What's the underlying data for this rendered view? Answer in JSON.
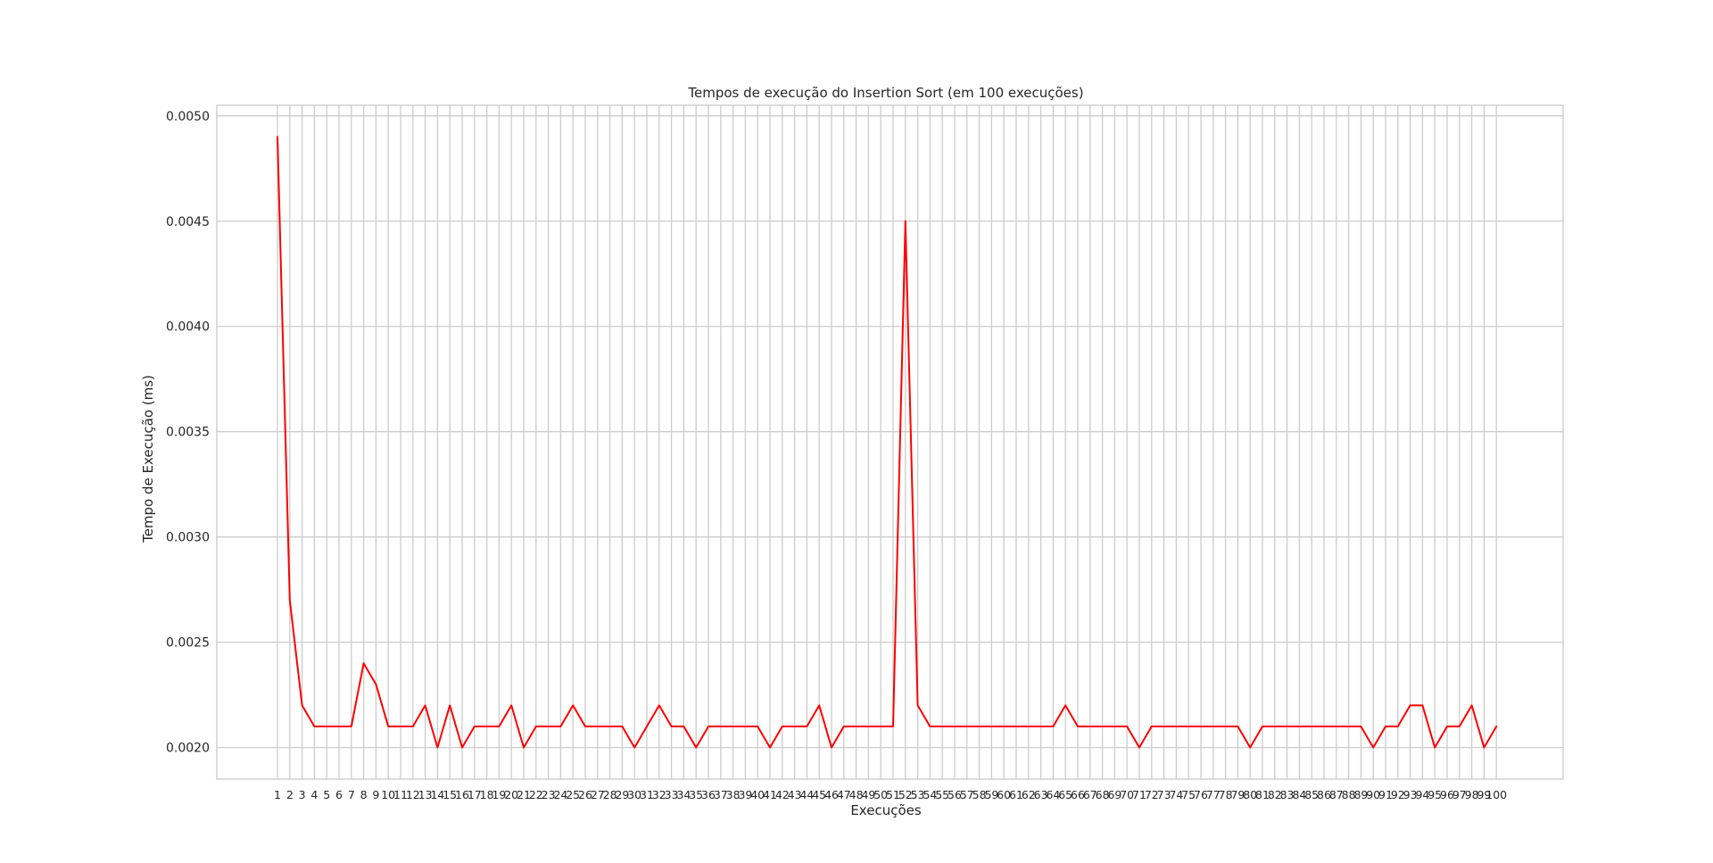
{
  "chart_data": {
    "type": "line",
    "title": "Tempos de execução do Insertion Sort (em 100 execuções)",
    "xlabel": "Execuções",
    "ylabel": "Tempo de Execução (ms)",
    "ylim": [
      0.00185,
      0.00505
    ],
    "yticks": [
      0.002,
      0.0025,
      0.003,
      0.0035,
      0.004,
      0.0045,
      0.005
    ],
    "ytick_labels": [
      "0.0020",
      "0.0025",
      "0.0030",
      "0.0035",
      "0.0040",
      "0.0045",
      "0.0050"
    ],
    "grid": true,
    "categories": [
      "1",
      "2",
      "3",
      "4",
      "5",
      "6",
      "7",
      "8",
      "9",
      "10",
      "11",
      "12",
      "13",
      "14",
      "15",
      "16",
      "17",
      "18",
      "19",
      "20",
      "21",
      "22",
      "23",
      "24",
      "25",
      "26",
      "27",
      "28",
      "29",
      "30",
      "31",
      "32",
      "33",
      "34",
      "35",
      "36",
      "37",
      "38",
      "39",
      "40",
      "41",
      "42",
      "43",
      "44",
      "45",
      "46",
      "47",
      "48",
      "49",
      "50",
      "51",
      "52",
      "53",
      "54",
      "55",
      "56",
      "57",
      "58",
      "59",
      "60",
      "61",
      "62",
      "63",
      "64",
      "65",
      "66",
      "67",
      "68",
      "69",
      "70",
      "71",
      "72",
      "73",
      "74",
      "75",
      "76",
      "77",
      "78",
      "79",
      "80",
      "81",
      "82",
      "83",
      "84",
      "85",
      "86",
      "87",
      "88",
      "89",
      "90",
      "91",
      "92",
      "93",
      "94",
      "95",
      "96",
      "97",
      "98",
      "99",
      "100"
    ],
    "series": [
      {
        "name": "Insertion Sort",
        "color": "#ff0000",
        "values": [
          0.0049,
          0.0027,
          0.0022,
          0.0021,
          0.0021,
          0.0021,
          0.0021,
          0.0024,
          0.0023,
          0.0021,
          0.0021,
          0.0021,
          0.0022,
          0.002,
          0.0022,
          0.002,
          0.0021,
          0.0021,
          0.0021,
          0.0022,
          0.002,
          0.0021,
          0.0021,
          0.0021,
          0.0022,
          0.0021,
          0.0021,
          0.0021,
          0.0021,
          0.002,
          0.0021,
          0.0022,
          0.0021,
          0.0021,
          0.002,
          0.0021,
          0.0021,
          0.0021,
          0.0021,
          0.0021,
          0.002,
          0.0021,
          0.0021,
          0.0021,
          0.0022,
          0.002,
          0.0021,
          0.0021,
          0.0021,
          0.0021,
          0.0021,
          0.0045,
          0.0022,
          0.0021,
          0.0021,
          0.0021,
          0.0021,
          0.0021,
          0.0021,
          0.0021,
          0.0021,
          0.0021,
          0.0021,
          0.0021,
          0.0022,
          0.0021,
          0.0021,
          0.0021,
          0.0021,
          0.0021,
          0.002,
          0.0021,
          0.0021,
          0.0021,
          0.0021,
          0.0021,
          0.0021,
          0.0021,
          0.0021,
          0.002,
          0.0021,
          0.0021,
          0.0021,
          0.0021,
          0.0021,
          0.0021,
          0.0021,
          0.0021,
          0.0021,
          0.002,
          0.0021,
          0.0021,
          0.0022,
          0.0022,
          0.002,
          0.0021,
          0.0021,
          0.0022,
          0.002,
          0.0021
        ]
      }
    ]
  }
}
